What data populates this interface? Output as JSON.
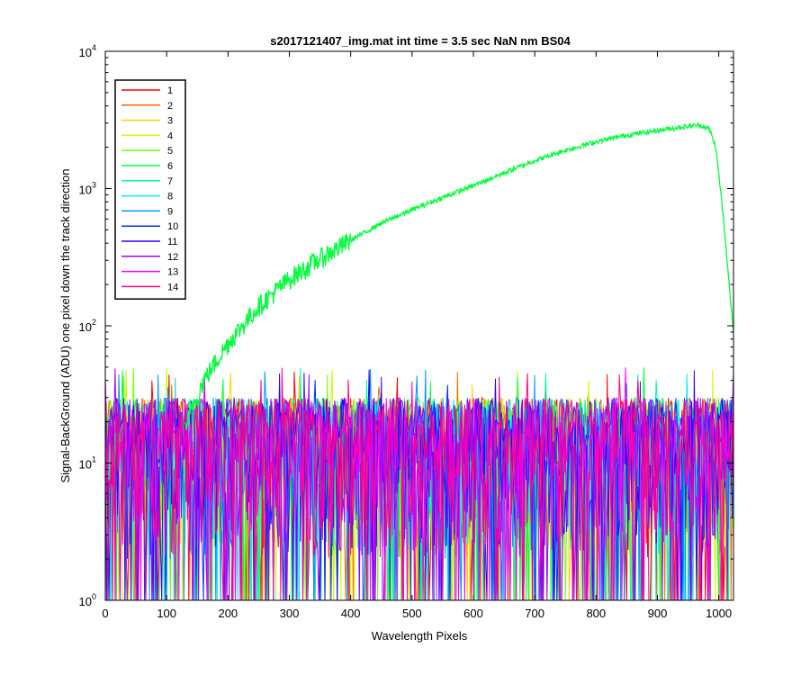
{
  "chart_data": {
    "type": "line",
    "title": "s2017121407_img.mat int time = 3.5 sec  NaN nm BS04",
    "xlabel": "Wavelength Pixels",
    "ylabel": "Signal-BackGround (ADU) one pixel down the track direction",
    "xlim": [
      0,
      1024
    ],
    "ylim": [
      1,
      10000
    ],
    "yscale": "log",
    "xticks": [
      0,
      100,
      200,
      300,
      400,
      500,
      600,
      700,
      800,
      900,
      1000
    ],
    "yticks": [
      {
        "value": 1,
        "base": "10",
        "exp": "0"
      },
      {
        "value": 10,
        "base": "10",
        "exp": "1"
      },
      {
        "value": 100,
        "base": "10",
        "exp": "2"
      },
      {
        "value": 1000,
        "base": "10",
        "exp": "3"
      },
      {
        "value": 10000,
        "base": "10",
        "exp": "4"
      }
    ],
    "grid": false,
    "legend_position": "top-left",
    "series": [
      {
        "name": "1",
        "color": "#ff0000"
      },
      {
        "name": "2",
        "color": "#ff6a00"
      },
      {
        "name": "3",
        "color": "#ffd200"
      },
      {
        "name": "4",
        "color": "#c8ff00"
      },
      {
        "name": "5",
        "color": "#78ff00"
      },
      {
        "name": "6",
        "color": "#00ff3c",
        "signal_points": [
          [
            130,
            18
          ],
          [
            160,
            40
          ],
          [
            200,
            75
          ],
          [
            250,
            140
          ],
          [
            300,
            220
          ],
          [
            350,
            310
          ],
          [
            400,
            420
          ],
          [
            450,
            560
          ],
          [
            500,
            700
          ],
          [
            550,
            860
          ],
          [
            600,
            1050
          ],
          [
            650,
            1300
          ],
          [
            700,
            1600
          ],
          [
            750,
            1900
          ],
          [
            800,
            2200
          ],
          [
            850,
            2450
          ],
          [
            900,
            2650
          ],
          [
            950,
            2850
          ],
          [
            970,
            2900
          ],
          [
            985,
            2700
          ],
          [
            995,
            2000
          ],
          [
            1005,
            800
          ],
          [
            1015,
            250
          ],
          [
            1024,
            90
          ]
        ]
      },
      {
        "name": "7",
        "color": "#00ffa0"
      },
      {
        "name": "8",
        "color": "#00f0ff"
      },
      {
        "name": "9",
        "color": "#0096ff"
      },
      {
        "name": "10",
        "color": "#0032ff"
      },
      {
        "name": "11",
        "color": "#3200ff"
      },
      {
        "name": "12",
        "color": "#a000ff"
      },
      {
        "name": "13",
        "color": "#ff00f0"
      },
      {
        "name": "14",
        "color": "#ff0082"
      }
    ]
  }
}
